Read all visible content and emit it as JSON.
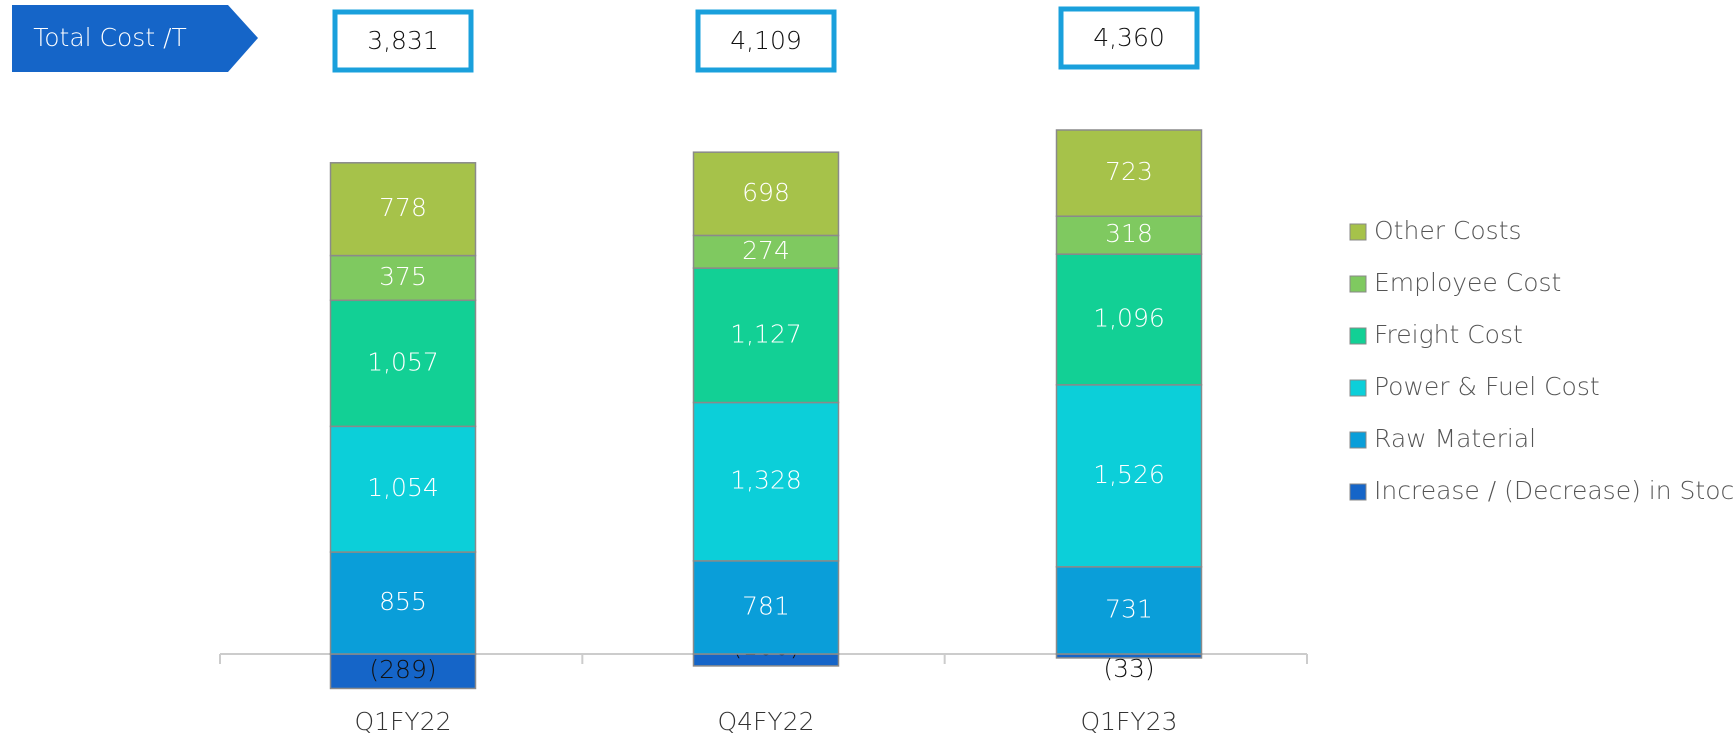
{
  "chart_data": {
    "type": "stacked_bar",
    "label": "Total Cost /T",
    "categories": [
      "Q1FY22",
      "Q4FY22",
      "Q1FY23"
    ],
    "totals": [
      3831,
      4109,
      4360
    ],
    "total_labels": [
      "3,831",
      "4,109",
      "4,360"
    ],
    "series": [
      {
        "name": "Increase / (Decrease) in Stock",
        "color": "#1565c8",
        "values": [
          -289,
          -100,
          -33
        ],
        "value_labels": [
          "(289)",
          "(100)",
          "(33)"
        ]
      },
      {
        "name": "Raw Material",
        "color": "#0a9ed9",
        "values": [
          855,
          781,
          731
        ]
      },
      {
        "name": "Power & Fuel Cost",
        "color": "#0ccfd9",
        "values": [
          1054,
          1328,
          1526
        ],
        "value_labels": [
          "1,054",
          "1,328",
          "1,526"
        ]
      },
      {
        "name": "Freight Cost",
        "color": "#12d095",
        "values": [
          1057,
          1127,
          1096
        ],
        "value_labels": [
          "1,057",
          "1,127",
          "1,096"
        ]
      },
      {
        "name": "Employee Cost",
        "color": "#7fc960",
        "values": [
          375,
          274,
          318
        ]
      },
      {
        "name": "Other Costs",
        "color": "#a6c24a",
        "values": [
          778,
          698,
          723
        ]
      }
    ]
  }
}
